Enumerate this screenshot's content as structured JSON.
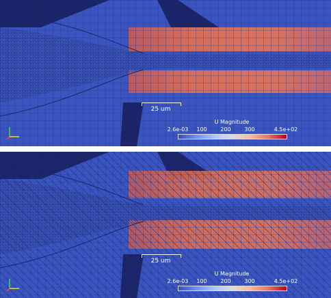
{
  "panels": [
    {
      "id": "top",
      "scale_bar": {
        "label": "25 um"
      },
      "legend": {
        "title": "U Magnitude",
        "tick_labels": [
          "2.6e-03",
          "100",
          "200",
          "300",
          "4.5e+02"
        ],
        "colormap": [
          "#3b4cc0",
          "#b40426"
        ]
      }
    },
    {
      "id": "bottom",
      "scale_bar": {
        "label": "25 um"
      },
      "legend": {
        "title": "U Magnitude",
        "tick_labels": [
          "2.6e-03",
          "100",
          "200",
          "300",
          "4.5e+02"
        ],
        "colormap": [
          "#3b4cc0",
          "#b40426"
        ]
      }
    }
  ]
}
